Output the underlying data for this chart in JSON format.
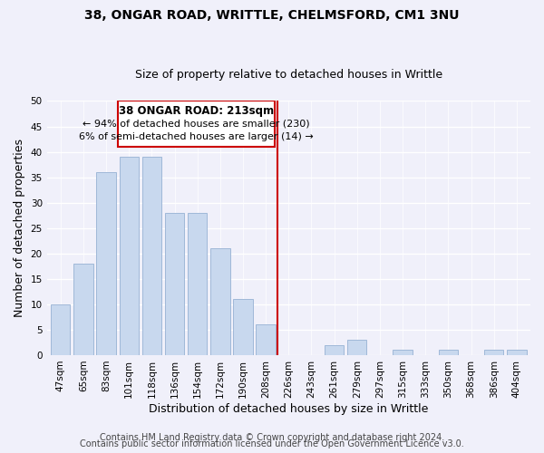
{
  "title1": "38, ONGAR ROAD, WRITTLE, CHELMSFORD, CM1 3NU",
  "title2": "Size of property relative to detached houses in Writtle",
  "xlabel": "Distribution of detached houses by size in Writtle",
  "ylabel": "Number of detached properties",
  "bar_labels": [
    "47sqm",
    "65sqm",
    "83sqm",
    "101sqm",
    "118sqm",
    "136sqm",
    "154sqm",
    "172sqm",
    "190sqm",
    "208sqm",
    "226sqm",
    "243sqm",
    "261sqm",
    "279sqm",
    "297sqm",
    "315sqm",
    "333sqm",
    "350sqm",
    "368sqm",
    "386sqm",
    "404sqm"
  ],
  "bar_values": [
    10,
    18,
    36,
    39,
    39,
    28,
    28,
    21,
    11,
    6,
    0,
    0,
    2,
    3,
    0,
    1,
    0,
    1,
    0,
    1,
    1
  ],
  "bar_color": "#c8d8ee",
  "bar_edge_color": "#a0b8d8",
  "ylim": [
    0,
    50
  ],
  "yticks": [
    0,
    5,
    10,
    15,
    20,
    25,
    30,
    35,
    40,
    45,
    50
  ],
  "vline_x_index": 9.5,
  "vline_color": "#cc0000",
  "annotation_title": "38 ONGAR ROAD: 213sqm",
  "annotation_line1": "← 94% of detached houses are smaller (230)",
  "annotation_line2": "6% of semi-detached houses are larger (14) →",
  "annotation_box_color": "#ffffff",
  "annotation_box_edge_color": "#cc0000",
  "footer1": "Contains HM Land Registry data © Crown copyright and database right 2024.",
  "footer2": "Contains public sector information licensed under the Open Government Licence v3.0.",
  "background_color": "#f0f0fa",
  "grid_color": "#ffffff",
  "title_fontsize": 10,
  "subtitle_fontsize": 9,
  "axis_label_fontsize": 9,
  "tick_fontsize": 7.5,
  "annotation_title_fontsize": 8.5,
  "annotation_text_fontsize": 8.0,
  "footer_fontsize": 7
}
